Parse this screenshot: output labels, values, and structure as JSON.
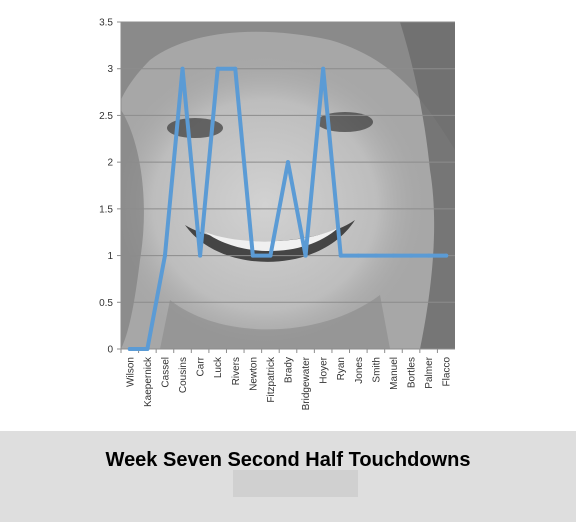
{
  "caption": {
    "title": "Week Seven Second Half Touchdowns"
  },
  "colors": {
    "line": "#5b9bd5",
    "plot_bg": "#a7a7a7",
    "photo_face": "#c4c4c4",
    "photo_shadow": "#6a6a6a",
    "gridline": "#8c8c8c",
    "caption_band": "#dedede"
  },
  "chart_data": {
    "type": "line",
    "title": "",
    "xlabel": "",
    "ylabel": "",
    "ylim": [
      0,
      3.5
    ],
    "yticks": [
      "0",
      "0.5",
      "1",
      "1.5",
      "2",
      "2.5",
      "3",
      "3.5"
    ],
    "grid": true,
    "legend": "none",
    "background": "grayscale photo of a smiling face",
    "categories": [
      "Wilson",
      "Kaepernick",
      "Cassel",
      "Cousins",
      "Carr",
      "Luck",
      "Rivers",
      "Newton",
      "Fitzpatrick",
      "Brady",
      "Bridgewater",
      "Hoyer",
      "Ryan",
      "Jones",
      "Smith",
      "Manuel",
      "Bortles",
      "Palmer",
      "Flacco"
    ],
    "values": [
      0,
      0,
      1,
      3,
      1,
      3,
      3,
      1,
      1,
      2,
      1,
      3,
      1,
      1,
      1,
      1,
      1,
      1,
      1
    ]
  }
}
